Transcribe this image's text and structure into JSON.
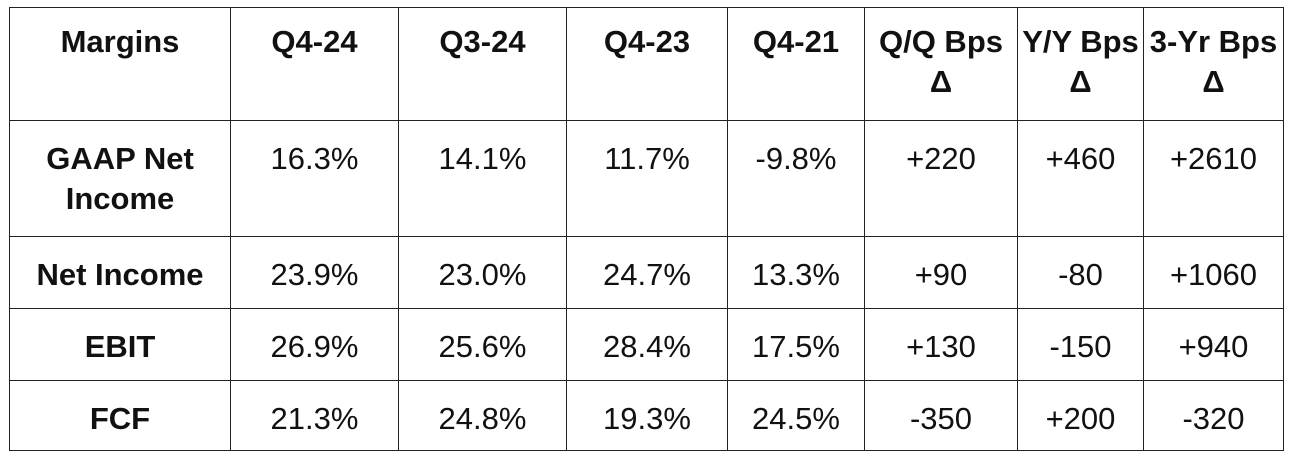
{
  "table": {
    "header": [
      "Margins",
      "Q4-24",
      "Q3-24",
      "Q4-23",
      "Q4-21",
      "Q/Q Bps Δ",
      "Y/Y Bps Δ",
      "3-Yr Bps Δ"
    ],
    "rows": [
      [
        "GAAP Net Income",
        "16.3%",
        "14.1%",
        "11.7%",
        "-9.8%",
        "+220",
        "+460",
        "+2610"
      ],
      [
        "Net Income",
        "23.9%",
        "23.0%",
        "24.7%",
        "13.3%",
        "+90",
        "-80",
        "+1060"
      ],
      [
        "EBIT",
        "26.9%",
        "25.6%",
        "28.4%",
        "17.5%",
        "+130",
        "-150",
        "+940"
      ],
      [
        "FCF",
        "21.3%",
        "24.8%",
        "19.3%",
        "24.5%",
        "-350",
        "+200",
        "-320"
      ]
    ]
  }
}
